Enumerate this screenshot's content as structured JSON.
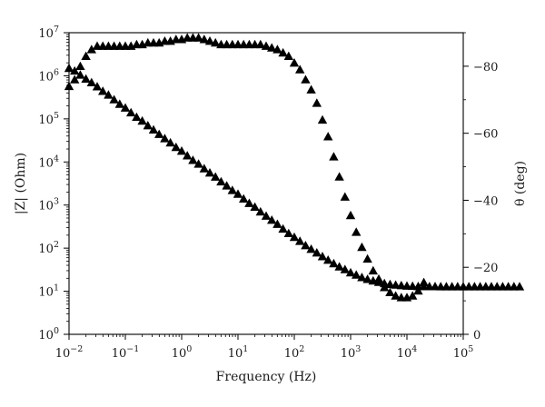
{
  "chart_data": {
    "type": "scatter",
    "title": "",
    "xlabel": "Frequency (Hz)",
    "ylabel_left": "|Z| (Ohm)",
    "ylabel_right": "θ (deg)",
    "x_scale": "log",
    "xlim": [
      0.01,
      100000
    ],
    "ylim_left": [
      1,
      10000000
    ],
    "y_left_scale": "log",
    "ylim_right": [
      0,
      -90
    ],
    "y_right_inverted": true,
    "x_ticks": [
      {
        "value": 0.01,
        "base": "10",
        "exp": "−2"
      },
      {
        "value": 0.1,
        "base": "10",
        "exp": "−1"
      },
      {
        "value": 1,
        "base": "10",
        "exp": "0"
      },
      {
        "value": 10,
        "base": "10",
        "exp": "1"
      },
      {
        "value": 100,
        "base": "10",
        "exp": "2"
      },
      {
        "value": 1000,
        "base": "10",
        "exp": "3"
      },
      {
        "value": 10000,
        "base": "10",
        "exp": "4"
      },
      {
        "value": 100000,
        "base": "10",
        "exp": "5"
      }
    ],
    "y_left_ticks": [
      {
        "value": 1,
        "base": "10",
        "exp": "0"
      },
      {
        "value": 10,
        "base": "10",
        "exp": "1"
      },
      {
        "value": 100,
        "base": "10",
        "exp": "2"
      },
      {
        "value": 1000,
        "base": "10",
        "exp": "3"
      },
      {
        "value": 10000,
        "base": "10",
        "exp": "4"
      },
      {
        "value": 100000,
        "base": "10",
        "exp": "5"
      },
      {
        "value": 1000000,
        "base": "10",
        "exp": "6"
      },
      {
        "value": 10000000,
        "base": "10",
        "exp": "7"
      }
    ],
    "y_right_ticks": [
      {
        "value": 0,
        "label": "0"
      },
      {
        "value": -20,
        "label": "−20"
      },
      {
        "value": -40,
        "label": "−40"
      },
      {
        "value": -60,
        "label": "−60"
      },
      {
        "value": -80,
        "label": "−80"
      }
    ],
    "marker": "filled-triangle",
    "marker_color": "#000000",
    "series": [
      {
        "axis": "left",
        "quantity": "|Z|",
        "x_log10_start": -2,
        "x_log10_step": 0.1,
        "points_per_decade": 10,
        "values": [
          1500000,
          1300000,
          1050000,
          850000,
          700000,
          560000,
          440000,
          360000,
          280000,
          220000,
          180000,
          140000,
          110000,
          90000,
          70000,
          56000,
          44000,
          35000,
          28000,
          22000,
          18000,
          14000,
          11000,
          9000,
          7000,
          5600,
          4500,
          3500,
          2800,
          2200,
          1800,
          1400,
          1100,
          900,
          700,
          560,
          450,
          360,
          280,
          220,
          180,
          145,
          115,
          95,
          78,
          64,
          53,
          44,
          37,
          32,
          27,
          24,
          21,
          19,
          17.5,
          16.2,
          15.2,
          14.5,
          14,
          13.6,
          13.3,
          13.1,
          13,
          12.9,
          12.9,
          12.9,
          12.8,
          12.8,
          12.8,
          12.8,
          12.8,
          12.8,
          12.8,
          12.8,
          12.8,
          12.8,
          12.8,
          12.8,
          12.8,
          12.8,
          12.8
        ]
      },
      {
        "axis": "right",
        "quantity": "θ",
        "x_log10_start": -2,
        "x_log10_step": 0.1,
        "points_per_decade": 10,
        "values": [
          -74,
          -76,
          -80,
          -83,
          -85,
          -86,
          -86,
          -86,
          -86,
          -86,
          -86,
          -86,
          -86.5,
          -86.5,
          -87,
          -87,
          -87,
          -87.5,
          -87.5,
          -88,
          -88,
          -88.5,
          -88.5,
          -88.5,
          -88,
          -87.5,
          -87,
          -86.5,
          -86.5,
          -86.5,
          -86.5,
          -86.5,
          -86.5,
          -86.5,
          -86.5,
          -86,
          -85.5,
          -85,
          -84,
          -83,
          -81,
          -79,
          -76,
          -73,
          -69,
          -64,
          -59,
          -53,
          -47,
          -41,
          -35.5,
          -30.5,
          -26,
          -22.5,
          -19,
          -16.5,
          -14,
          -12.5,
          -11.5,
          -11,
          -11,
          -11.5,
          -13,
          -15.5
        ]
      }
    ]
  }
}
